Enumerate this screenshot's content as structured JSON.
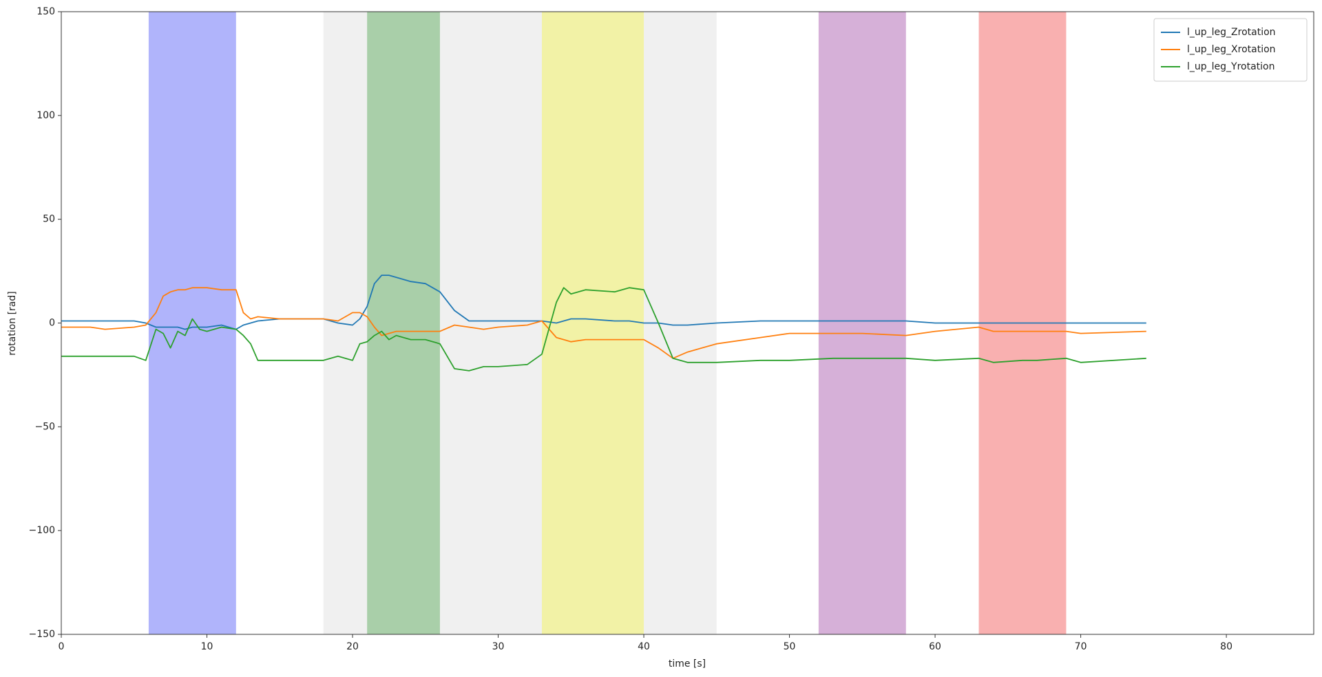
{
  "chart_data": {
    "type": "line",
    "xlabel": "time [s]",
    "ylabel": "rotation [rad]",
    "xlim": [
      0,
      86
    ],
    "ylim": [
      -150,
      150
    ],
    "xticks": [
      0,
      10,
      20,
      30,
      40,
      50,
      60,
      70,
      80
    ],
    "yticks": [
      {
        "value": -150,
        "label": "−150"
      },
      {
        "value": -100,
        "label": "−100"
      },
      {
        "value": -50,
        "label": "−50"
      },
      0,
      50,
      100,
      150
    ],
    "legend": "upper right",
    "spans": [
      {
        "start": 18,
        "end": 45,
        "color": "#f0f0f0"
      },
      {
        "start": 6,
        "end": 12,
        "color": "#b0b4fb"
      },
      {
        "start": 21,
        "end": 26,
        "color": "#a9cfa9"
      },
      {
        "start": 33,
        "end": 40,
        "color": "#f2f2a6"
      },
      {
        "start": 52,
        "end": 58,
        "color": "#d6b0d8"
      },
      {
        "start": 63,
        "end": 69,
        "color": "#f9b0b0"
      }
    ],
    "x": [
      0,
      2,
      3,
      5,
      5.8,
      6.5,
      7,
      7.5,
      8,
      8.5,
      9,
      9.5,
      10,
      11,
      12,
      12.5,
      13,
      13.5,
      15,
      18,
      19,
      20,
      20.5,
      21,
      21.5,
      22,
      22.5,
      23,
      24,
      25,
      26,
      27,
      28,
      29,
      30,
      32,
      33,
      34,
      34.5,
      35,
      36,
      38,
      39,
      40,
      41,
      42,
      43,
      45,
      48,
      50,
      53,
      55,
      58,
      60,
      63,
      64,
      66,
      67,
      69,
      70,
      74.5
    ],
    "series": [
      {
        "name": "l_up_leg_Zrotation",
        "color": "#1f77b4",
        "values": [
          1,
          1,
          1,
          1,
          0,
          -2,
          -2,
          -2,
          -2,
          -3,
          -2,
          -2,
          -2,
          -1,
          -3,
          -1,
          0,
          1,
          2,
          2,
          0,
          -1,
          2,
          8,
          19,
          23,
          23,
          22,
          20,
          19,
          15,
          6,
          1,
          1,
          1,
          1,
          1,
          0,
          1,
          2,
          2,
          1,
          1,
          0,
          0,
          -1,
          -1,
          0,
          1,
          1,
          1,
          1,
          1,
          0,
          0,
          0,
          0,
          0,
          0,
          0,
          0
        ]
      },
      {
        "name": "l_up_leg_Xrotation",
        "color": "#ff7f0e",
        "values": [
          -2,
          -2,
          -3,
          -2,
          -1,
          5,
          13,
          15,
          16,
          16,
          17,
          17,
          17,
          16,
          16,
          5,
          2,
          3,
          2,
          2,
          1,
          5,
          5,
          3,
          -2,
          -6,
          -5,
          -4,
          -4,
          -4,
          -4,
          -1,
          -2,
          -3,
          -2,
          -1,
          1,
          -7,
          -8,
          -9,
          -8,
          -8,
          -8,
          -8,
          -12,
          -17,
          -14,
          -10,
          -7,
          -5,
          -5,
          -5,
          -6,
          -4,
          -2,
          -4,
          -4,
          -4,
          -4,
          -5,
          -4
        ]
      },
      {
        "name": "l_up_leg_Yrotation",
        "color": "#2ca02c",
        "values": [
          -16,
          -16,
          -16,
          -16,
          -18,
          -3,
          -5,
          -12,
          -4,
          -6,
          2,
          -3,
          -4,
          -2,
          -3,
          -6,
          -10,
          -18,
          -18,
          -18,
          -16,
          -18,
          -10,
          -9,
          -6,
          -4,
          -8,
          -6,
          -8,
          -8,
          -10,
          -22,
          -23,
          -21,
          -21,
          -20,
          -15,
          10,
          17,
          14,
          16,
          15,
          17,
          16,
          0,
          -17,
          -19,
          -19,
          -18,
          -18,
          -17,
          -17,
          -17,
          -18,
          -17,
          -19,
          -18,
          -18,
          -17,
          -19,
          -17
        ]
      }
    ]
  }
}
